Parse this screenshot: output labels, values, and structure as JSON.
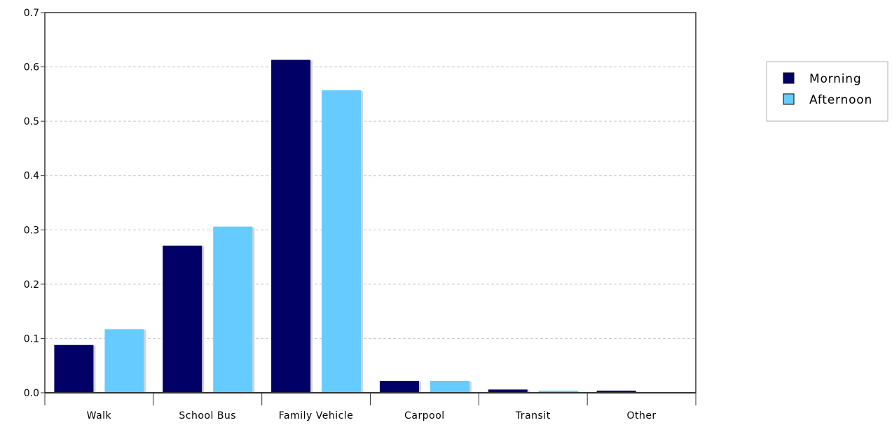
{
  "chart_data": {
    "type": "bar",
    "title": "",
    "xlabel": "",
    "ylabel": "",
    "categories": [
      "Walk",
      "School Bus",
      "Family Vehicle",
      "Carpool",
      "Transit",
      "Other"
    ],
    "series": [
      {
        "name": "Morning",
        "color": "#000066",
        "values": [
          0.088,
          0.271,
          0.613,
          0.022,
          0.006,
          0.004
        ]
      },
      {
        "name": "Afternoon",
        "color": "#66ccff",
        "values": [
          0.117,
          0.306,
          0.557,
          0.022,
          0.004,
          0.0
        ]
      }
    ],
    "ylim": [
      0,
      0.7
    ],
    "yticks": [
      "0.0",
      "0.1",
      "0.2",
      "0.3",
      "0.4",
      "0.5",
      "0.6",
      "0.7"
    ],
    "grid": true,
    "legend_position": "right"
  }
}
